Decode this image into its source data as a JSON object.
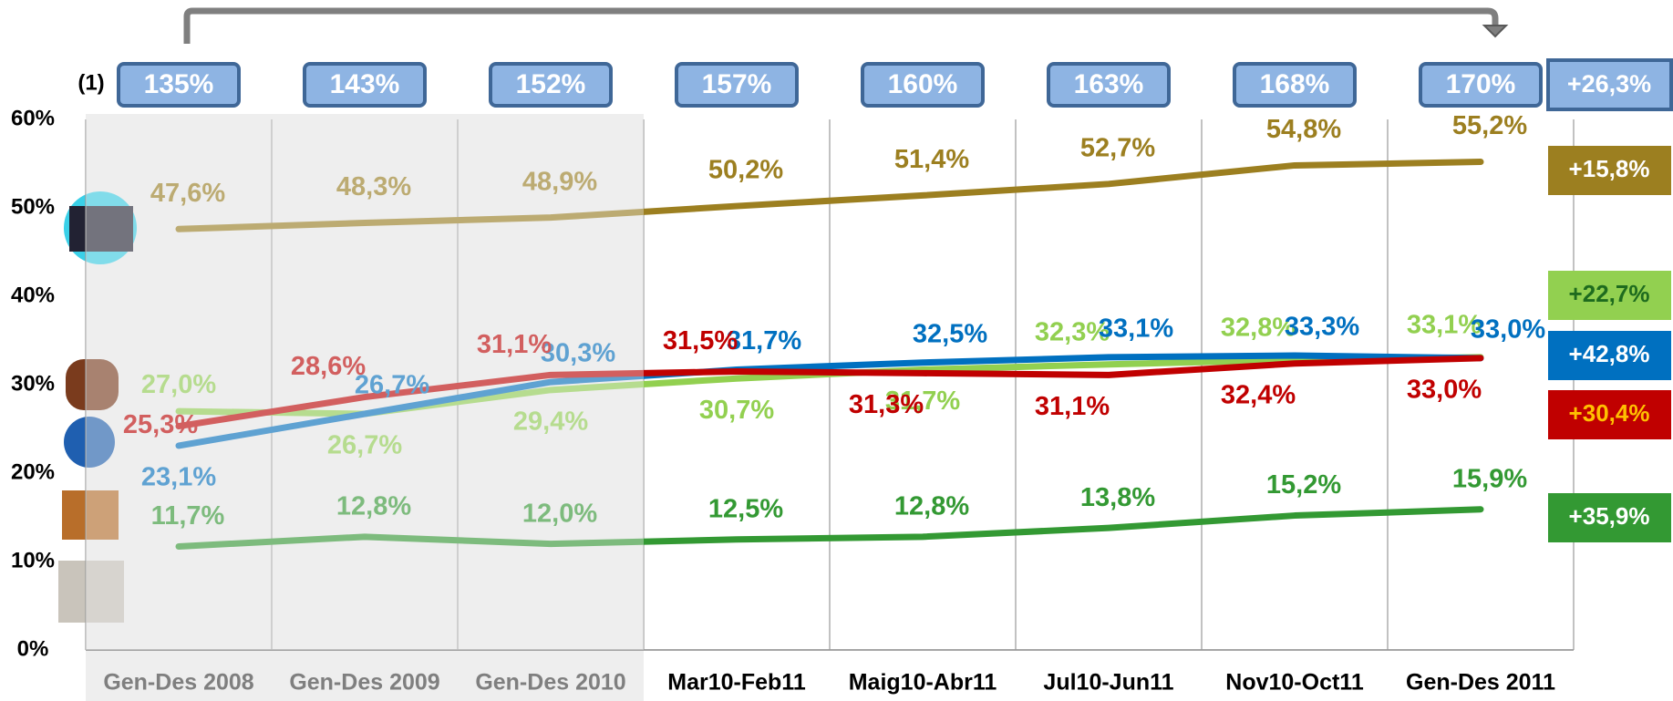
{
  "chart_data": {
    "type": "line",
    "note_marker": "(1)",
    "index_labels": [
      "135%",
      "143%",
      "152%",
      "157%",
      "160%",
      "163%",
      "168%",
      "170%"
    ],
    "index_change": "+26,3%",
    "categories": [
      "Gen-Des 2008",
      "Gen-Des 2009",
      "Gen-Des 2010",
      "Mar10-Feb11",
      "Maig10-Abr11",
      "Jul10-Jun11",
      "Nov10-Oct11",
      "Gen-Des 2011"
    ],
    "ylim": [
      0,
      60
    ],
    "yticks": [
      {
        "value": 0,
        "label": "0%"
      },
      {
        "value": 10,
        "label": "10%"
      },
      {
        "value": 20,
        "label": "20%"
      },
      {
        "value": 30,
        "label": "30%"
      },
      {
        "value": 40,
        "label": "40%"
      },
      {
        "value": 50,
        "label": "50%"
      },
      {
        "value": 60,
        "label": "60%"
      }
    ],
    "grid": true,
    "series": [
      {
        "color": "#9c7f20",
        "change": "+15,8%",
        "change_text_color": "#ffffff",
        "values": [
          47.6,
          48.3,
          48.9,
          50.2,
          51.4,
          52.7,
          54.8,
          55.2
        ],
        "value_labels": [
          "47,6%",
          "48,3%",
          "48,9%",
          "50,2%",
          "51,4%",
          "52,7%",
          "54,8%",
          "55,2%"
        ]
      },
      {
        "color": "#92d050",
        "change": "+22,7%",
        "change_text_color": "#1e6b1e",
        "values": [
          27.0,
          26.7,
          29.4,
          30.7,
          31.7,
          32.3,
          32.8,
          33.1
        ],
        "value_labels": [
          "27,0%",
          "26,7%",
          "29,4%",
          "30,7%",
          "31,7%",
          "32,3%",
          "32,8%",
          "33,1%"
        ]
      },
      {
        "color": "#0070c0",
        "change": "+42,8%",
        "change_text_color": "#ffffff",
        "values": [
          23.1,
          26.7,
          30.3,
          31.7,
          32.5,
          33.1,
          33.3,
          33.0
        ],
        "value_labels": [
          "23,1%",
          "26,7%",
          "30,3%",
          "31,7%",
          "32,5%",
          "33,1%",
          "33,3%",
          "33,0%"
        ]
      },
      {
        "color": "#c00000",
        "change": "+30,4%",
        "change_text_color": "#ffc000",
        "values": [
          25.3,
          28.6,
          31.1,
          31.5,
          31.3,
          31.1,
          32.4,
          33.0
        ],
        "value_labels": [
          "25,3%",
          "28,6%",
          "31,1%",
          "31,5%",
          "31,3%",
          "31,1%",
          "32,4%",
          "33,0%"
        ]
      },
      {
        "color": "#339933",
        "change": "+35,9%",
        "change_text_color": "#ffffff",
        "values": [
          11.7,
          12.8,
          12.0,
          12.5,
          12.8,
          13.8,
          15.2,
          15.9
        ],
        "value_labels": [
          "11,7%",
          "12,8%",
          "12,0%",
          "12,5%",
          "12,8%",
          "13,8%",
          "15,2%",
          "15,9%"
        ]
      }
    ]
  }
}
